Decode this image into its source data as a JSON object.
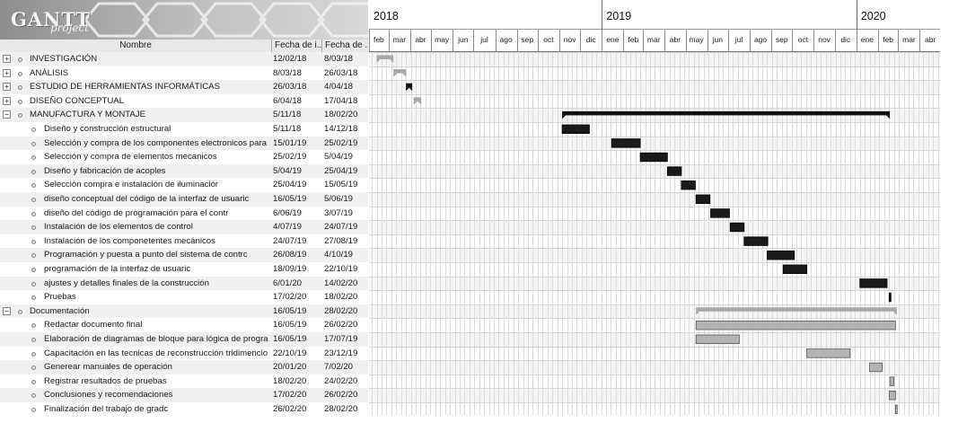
{
  "app": {
    "logo_text": "GANTT",
    "logo_sub": "project"
  },
  "table": {
    "headers": {
      "name": "Nombre",
      "start": "Fecha de i...",
      "end": "Fecha de ..."
    },
    "rows": [
      {
        "name": "INVESTIGACIÓN",
        "start": "12/02/18",
        "end": "8/03/18",
        "level": 0,
        "expander": "+"
      },
      {
        "name": "ANÁLISIS",
        "start": "8/03/18",
        "end": "26/03/18",
        "level": 0,
        "expander": "+"
      },
      {
        "name": "ESTUDIO DE HERRAMIENTAS INFORMÁTICAS",
        "start": "26/03/18",
        "end": "4/04/18",
        "level": 0,
        "expander": "+"
      },
      {
        "name": "DISEÑO CONCEPTUAL",
        "start": "6/04/18",
        "end": "17/04/18",
        "level": 0,
        "expander": "+"
      },
      {
        "name": "MANUFACTURA Y MONTAJE",
        "start": "5/11/18",
        "end": "18/02/20",
        "level": 0,
        "expander": "−"
      },
      {
        "name": "Diseño y construcción estructural",
        "start": "5/11/18",
        "end": "14/12/18",
        "level": 1
      },
      {
        "name": "Selección y compra de los componentes electronicos para",
        "start": "15/01/19",
        "end": "25/02/19",
        "level": 1
      },
      {
        "name": "Selección y compra de elementos mecanicos",
        "start": "25/02/19",
        "end": "5/04/19",
        "level": 1
      },
      {
        "name": "Diseño y fabricación de acoples",
        "start": "5/04/19",
        "end": "25/04/19",
        "level": 1
      },
      {
        "name": "Selección compra e instalación de iluminaciór",
        "start": "25/04/19",
        "end": "15/05/19",
        "level": 1
      },
      {
        "name": "diseño conceptual del código de la interfaz de usuaric",
        "start": "16/05/19",
        "end": "5/06/19",
        "level": 1
      },
      {
        "name": "diseño del código de programación para el contr",
        "start": "6/06/19",
        "end": "3/07/19",
        "level": 1
      },
      {
        "name": "Instalación de los elementos de control",
        "start": "4/07/19",
        "end": "24/07/19",
        "level": 1
      },
      {
        "name": "Instalación de los componetentes mecánicos",
        "start": "24/07/19",
        "end": "27/08/19",
        "level": 1
      },
      {
        "name": "Programación  y puesta a punto del sistema de contrc",
        "start": "26/08/19",
        "end": "4/10/19",
        "level": 1
      },
      {
        "name": "programación de la interfaz de usuaric",
        "start": "18/09/19",
        "end": "22/10/19",
        "level": 1
      },
      {
        "name": "ajustes y detalles finales de la construcción",
        "start": "6/01/20",
        "end": "14/02/20",
        "level": 1
      },
      {
        "name": "Pruebas",
        "start": "17/02/20",
        "end": "18/02/20",
        "level": 1
      },
      {
        "name": "Documentación",
        "start": "16/05/19",
        "end": "28/02/20",
        "level": 0,
        "expander": "−"
      },
      {
        "name": "Redactar documento final",
        "start": "16/05/19",
        "end": "26/02/20",
        "level": 1
      },
      {
        "name": "Elaboración de diagramas de bloque para lógica de progra",
        "start": "16/05/19",
        "end": "17/07/19",
        "level": 1
      },
      {
        "name": "Capacitación en las tecnicas de reconstrucción tridimencio",
        "start": "22/10/19",
        "end": "23/12/19",
        "level": 1
      },
      {
        "name": "Generear manuales de operación",
        "start": "20/01/20",
        "end": "7/02/20",
        "level": 1
      },
      {
        "name": "Registrar resultados de pruebas",
        "start": "18/02/20",
        "end": "24/02/20",
        "level": 1
      },
      {
        "name": "Conclusiones y recomendaciones",
        "start": "17/02/20",
        "end": "26/02/20",
        "level": 1
      },
      {
        "name": "Finalización del trabajo de gradc",
        "start": "26/02/20",
        "end": "28/02/20",
        "level": 1
      }
    ]
  },
  "chart_data": {
    "type": "gantt",
    "years": [
      "2018",
      "2019",
      "2020"
    ],
    "months": [
      "feb",
      "mar",
      "abr",
      "may",
      "jun",
      "jul",
      "ago",
      "sep",
      "oct",
      "nov",
      "dic",
      "ene",
      "feb",
      "mar",
      "abr",
      "may",
      "jun",
      "jul",
      "ago",
      "sep",
      "oct",
      "nov",
      "dic",
      "ene",
      "feb",
      "mar",
      "abr"
    ],
    "x_range": [
      "2018-02-01",
      "2020-04-30"
    ],
    "grid": true,
    "colors": {
      "summary_gray": "#a7a7a7",
      "summary_black": "#111111",
      "task_black": "#1a1a1a",
      "task_gray": "#b3b3b3"
    },
    "bars": [
      {
        "start": "2018-02-12",
        "end": "2018-03-08",
        "kind": "summary",
        "color": "summary_gray"
      },
      {
        "start": "2018-03-08",
        "end": "2018-03-26",
        "kind": "summary",
        "color": "summary_gray"
      },
      {
        "start": "2018-03-26",
        "end": "2018-04-04",
        "kind": "summary",
        "color": "summary_black"
      },
      {
        "start": "2018-04-06",
        "end": "2018-04-17",
        "kind": "summary",
        "color": "summary_gray"
      },
      {
        "start": "2018-11-05",
        "end": "2020-02-18",
        "kind": "summary",
        "color": "summary_black"
      },
      {
        "start": "2018-11-05",
        "end": "2018-12-14",
        "kind": "task",
        "color": "task_black"
      },
      {
        "start": "2019-01-15",
        "end": "2019-02-25",
        "kind": "task",
        "color": "task_black"
      },
      {
        "start": "2019-02-25",
        "end": "2019-04-05",
        "kind": "task",
        "color": "task_black"
      },
      {
        "start": "2019-04-05",
        "end": "2019-04-25",
        "kind": "task",
        "color": "task_black"
      },
      {
        "start": "2019-04-25",
        "end": "2019-05-15",
        "kind": "task",
        "color": "task_black"
      },
      {
        "start": "2019-05-16",
        "end": "2019-06-05",
        "kind": "task",
        "color": "task_black"
      },
      {
        "start": "2019-06-06",
        "end": "2019-07-03",
        "kind": "task",
        "color": "task_black"
      },
      {
        "start": "2019-07-04",
        "end": "2019-07-24",
        "kind": "task",
        "color": "task_black"
      },
      {
        "start": "2019-07-24",
        "end": "2019-08-27",
        "kind": "task",
        "color": "task_black"
      },
      {
        "start": "2019-08-26",
        "end": "2019-10-04",
        "kind": "task",
        "color": "task_black"
      },
      {
        "start": "2019-09-18",
        "end": "2019-10-22",
        "kind": "task",
        "color": "task_black"
      },
      {
        "start": "2020-01-06",
        "end": "2020-02-14",
        "kind": "task",
        "color": "task_black"
      },
      {
        "start": "2020-02-17",
        "end": "2020-02-18",
        "kind": "task",
        "color": "task_black"
      },
      {
        "start": "2019-05-16",
        "end": "2020-02-28",
        "kind": "summary",
        "color": "summary_gray"
      },
      {
        "start": "2019-05-16",
        "end": "2020-02-26",
        "kind": "task",
        "color": "task_gray"
      },
      {
        "start": "2019-05-16",
        "end": "2019-07-17",
        "kind": "task",
        "color": "task_gray"
      },
      {
        "start": "2019-10-22",
        "end": "2019-12-23",
        "kind": "task",
        "color": "task_gray"
      },
      {
        "start": "2020-01-20",
        "end": "2020-02-07",
        "kind": "task",
        "color": "task_gray"
      },
      {
        "start": "2020-02-18",
        "end": "2020-02-24",
        "kind": "task",
        "color": "task_gray"
      },
      {
        "start": "2020-02-17",
        "end": "2020-02-26",
        "kind": "task",
        "color": "task_gray"
      },
      {
        "start": "2020-02-26",
        "end": "2020-02-28",
        "kind": "task",
        "color": "task_gray"
      }
    ]
  }
}
